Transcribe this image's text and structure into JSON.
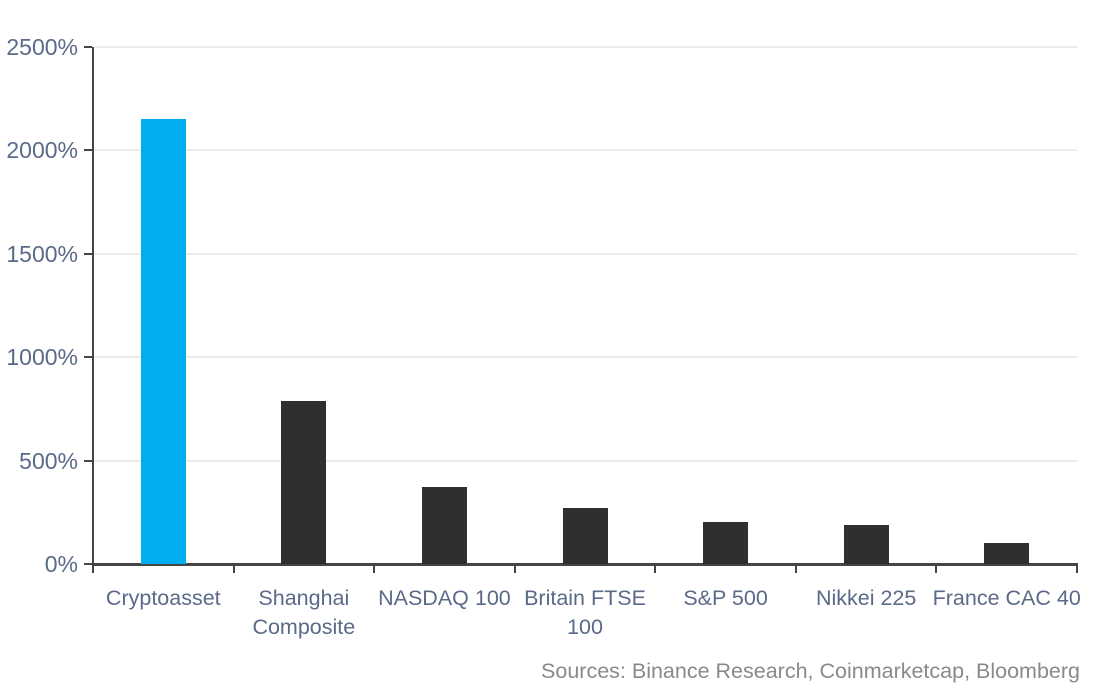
{
  "chart_data": {
    "type": "bar",
    "categories": [
      "Cryptoasset",
      "Shanghai\nComposite",
      "NASDAQ 100",
      "Britain  FTSE\n100",
      "S&P 500",
      "Nikkei 225",
      "France CAC 40"
    ],
    "values": [
      2150,
      790,
      370,
      270,
      205,
      190,
      100
    ],
    "bar_colors": [
      "#00AEEF",
      "#2F2F2F",
      "#2F2F2F",
      "#2F2F2F",
      "#2F2F2F",
      "#2F2F2F",
      "#2F2F2F"
    ],
    "yticks": [
      {
        "value": 0,
        "label": "0%"
      },
      {
        "value": 500,
        "label": "500%"
      },
      {
        "value": 1000,
        "label": "1000%"
      },
      {
        "value": 1500,
        "label": "1500%"
      },
      {
        "value": 2000,
        "label": "2000%"
      },
      {
        "value": 2500,
        "label": "2500%"
      }
    ],
    "ylim": [
      0,
      2500
    ],
    "title": "",
    "xlabel": "",
    "ylabel": "",
    "grid": "horizontal",
    "legend": "none",
    "source_note": "Sources: Binance Research, Coinmarketcap, Bloomberg"
  },
  "colors": {
    "highlight_bar": "#00AEEF",
    "default_bar": "#2F2F2F",
    "axis_line": "#454545",
    "grid_line": "#ECECEC",
    "tick_label": "#5A6A88",
    "source_text": "#8A8A8A"
  }
}
